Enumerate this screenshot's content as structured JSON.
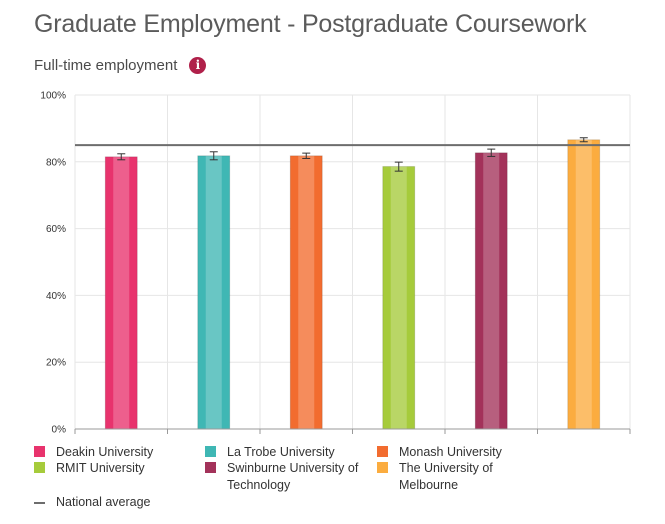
{
  "page": {
    "title": "Graduate Employment - Postgraduate Coursework",
    "subtitle": "Full-time employment",
    "info_icon": "info-icon"
  },
  "chart_data": {
    "type": "bar",
    "title": "",
    "xlabel": "",
    "ylabel": "",
    "ylim": [
      0,
      100
    ],
    "y_ticks": [
      0,
      20,
      40,
      60,
      80,
      100
    ],
    "y_tick_labels": [
      "0%",
      "20%",
      "40%",
      "60%",
      "80%",
      "100%"
    ],
    "grid": true,
    "legend_position": "bottom",
    "categories": [
      "Deakin University",
      "La Trobe University",
      "Monash University",
      "RMIT University",
      "Swinburne University of Technology",
      "The University of Melbourne"
    ],
    "values": [
      81.5,
      81.8,
      81.8,
      78.6,
      82.7,
      86.6
    ],
    "error_low": [
      80.6,
      80.6,
      81.0,
      77.2,
      81.6,
      86.0
    ],
    "error_high": [
      82.4,
      83.0,
      82.6,
      79.9,
      83.8,
      87.2
    ],
    "colors": [
      "#e8336d",
      "#3fb7b4",
      "#f26c2f",
      "#a6cb3b",
      "#a3325a",
      "#fbac3f"
    ],
    "national_average": 85,
    "national_average_label": "National average",
    "national_average_color": "#6d6d6d"
  },
  "legend": {
    "items": [
      {
        "label": "Deakin University",
        "color": "#e8336d"
      },
      {
        "label": "La Trobe University",
        "color": "#3fb7b4"
      },
      {
        "label": "Monash University",
        "color": "#f26c2f"
      },
      {
        "label": "RMIT University",
        "color": "#a6cb3b"
      },
      {
        "label": "Swinburne University of Technology",
        "color": "#a3325a"
      },
      {
        "label": "The University of Melbourne",
        "color": "#fbac3f"
      }
    ],
    "line_label": "National average"
  }
}
